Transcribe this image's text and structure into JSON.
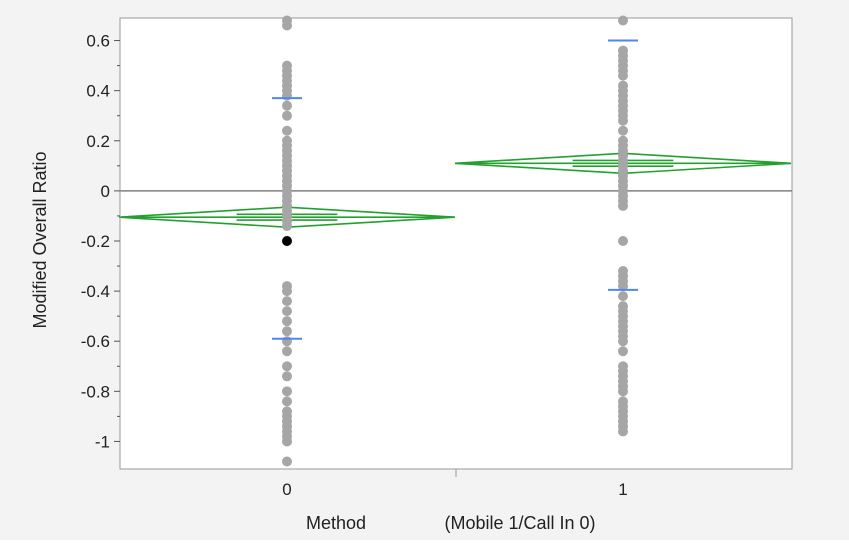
{
  "chart_data": {
    "type": "scatter",
    "title": "",
    "xlabel": "Method",
    "xlabel_detail": "(Mobile 1/Call In 0)",
    "ylabel": "Modified Overall Ratio",
    "categories": [
      "0",
      "1"
    ],
    "ylim": [
      -1.11,
      0.69
    ],
    "yticks": [
      0.6,
      0.4,
      0.2,
      0,
      -0.2,
      -0.4,
      -0.6,
      -0.8,
      -1
    ],
    "ytick_labels": [
      "0.6",
      "0.4",
      "0.2",
      "0",
      "-0.2",
      "-0.4",
      "-0.6",
      "-0.8",
      "-1"
    ],
    "grid": false,
    "reference_line": 0,
    "colors": {
      "points": "#a6a6a6",
      "highlight": "#000000",
      "diamond": "#22a12f",
      "quantile": "#4f86f7",
      "reference": "#808080",
      "frame": "#9a9a9a",
      "background": "#f3f3f3"
    },
    "series": [
      {
        "category": "0",
        "points": [
          0.68,
          0.66,
          0.5,
          0.48,
          0.46,
          0.44,
          0.42,
          0.4,
          0.38,
          0.34,
          0.3,
          0.24,
          0.2,
          0.18,
          0.16,
          0.14,
          0.12,
          0.1,
          0.08,
          0.06,
          0.04,
          0.02,
          0.0,
          -0.02,
          -0.04,
          -0.06,
          -0.08,
          -0.1,
          -0.12,
          -0.14,
          -0.38,
          -0.4,
          -0.44,
          -0.48,
          -0.52,
          -0.56,
          -0.6,
          -0.64,
          -0.7,
          -0.74,
          -0.8,
          -0.84,
          -0.88,
          -0.9,
          -0.92,
          -0.94,
          -0.96,
          -0.98,
          -1.0,
          -1.08
        ],
        "highlighted_points": [
          -0.2
        ],
        "mean": -0.105,
        "ci_lower": -0.145,
        "ci_upper": -0.065,
        "quantile_high": 0.37,
        "quantile_low": -0.59
      },
      {
        "category": "1",
        "points": [
          0.68,
          0.56,
          0.54,
          0.52,
          0.5,
          0.48,
          0.46,
          0.42,
          0.4,
          0.38,
          0.36,
          0.34,
          0.32,
          0.3,
          0.28,
          0.24,
          0.2,
          0.18,
          0.16,
          0.14,
          0.12,
          0.1,
          0.08,
          0.06,
          0.04,
          0.02,
          0.0,
          -0.02,
          -0.04,
          -0.06,
          -0.2,
          -0.32,
          -0.34,
          -0.36,
          -0.38,
          -0.42,
          -0.46,
          -0.48,
          -0.5,
          -0.52,
          -0.54,
          -0.56,
          -0.58,
          -0.6,
          -0.64,
          -0.7,
          -0.72,
          -0.74,
          -0.76,
          -0.78,
          -0.8,
          -0.84,
          -0.86,
          -0.88,
          -0.9,
          -0.92,
          -0.94,
          -0.96
        ],
        "highlighted_points": [],
        "mean": 0.11,
        "ci_lower": 0.07,
        "ci_upper": 0.15,
        "quantile_high": 0.6,
        "quantile_low": -0.395
      }
    ]
  }
}
